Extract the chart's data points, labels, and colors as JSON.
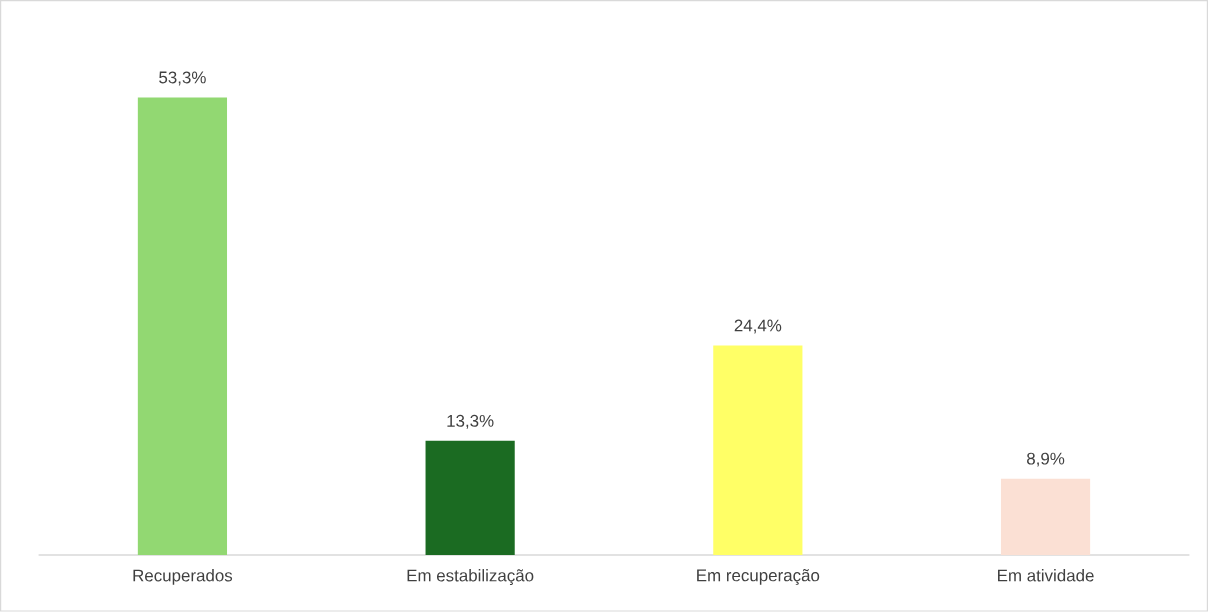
{
  "chart_data": {
    "type": "bar",
    "categories": [
      "Recuperados",
      "Em estabilização",
      "Em recuperação",
      "Em atividade"
    ],
    "values": [
      53.3,
      13.3,
      24.4,
      8.9
    ],
    "colors": [
      "#92d872",
      "#1b6b22",
      "#ffff66",
      "#fbe0d4"
    ],
    "value_labels": [
      "53,3%",
      "13,3%",
      "24,4%",
      "8,9%"
    ]
  }
}
